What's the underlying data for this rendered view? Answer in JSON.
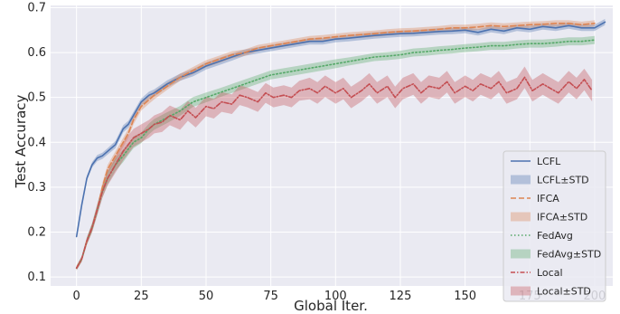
{
  "chart_data": {
    "type": "line",
    "title": "",
    "xlabel": "Global Iter.",
    "ylabel": "Test  Accuracy",
    "xlim": [
      -10,
      207
    ],
    "ylim": [
      0.08,
      0.705
    ],
    "xticks": [
      0,
      25,
      50,
      75,
      100,
      125,
      150,
      175,
      200
    ],
    "yticks": [
      0.1,
      0.2,
      0.3,
      0.4,
      0.5,
      0.6,
      0.7
    ],
    "grid": true,
    "legend_position": "bottom-right",
    "series": [
      {
        "name": "LCFL",
        "std_label": "LCFL±STD",
        "color": "#4C72B0",
        "dash": "solid",
        "x": [
          0,
          2,
          4,
          6,
          8,
          10,
          12,
          15,
          18,
          20,
          22,
          25,
          28,
          30,
          35,
          40,
          45,
          50,
          55,
          60,
          65,
          70,
          75,
          80,
          85,
          90,
          95,
          100,
          105,
          110,
          115,
          120,
          125,
          130,
          135,
          140,
          145,
          150,
          155,
          160,
          165,
          170,
          175,
          180,
          185,
          190,
          195,
          200,
          204
        ],
        "y": [
          0.19,
          0.26,
          0.32,
          0.35,
          0.365,
          0.37,
          0.38,
          0.395,
          0.43,
          0.44,
          0.46,
          0.49,
          0.505,
          0.51,
          0.53,
          0.545,
          0.555,
          0.57,
          0.58,
          0.59,
          0.6,
          0.605,
          0.61,
          0.615,
          0.62,
          0.625,
          0.625,
          0.63,
          0.632,
          0.635,
          0.638,
          0.64,
          0.642,
          0.643,
          0.645,
          0.647,
          0.648,
          0.65,
          0.645,
          0.652,
          0.648,
          0.655,
          0.652,
          0.658,
          0.655,
          0.66,
          0.655,
          0.655,
          0.668
        ],
        "std": [
          0.005,
          0.006,
          0.006,
          0.006,
          0.007,
          0.007,
          0.007,
          0.008,
          0.008,
          0.008,
          0.008,
          0.008,
          0.008,
          0.008,
          0.008,
          0.008,
          0.008,
          0.008,
          0.008,
          0.008,
          0.007,
          0.007,
          0.007,
          0.007,
          0.007,
          0.007,
          0.007,
          0.007,
          0.007,
          0.007,
          0.007,
          0.007,
          0.007,
          0.007,
          0.007,
          0.007,
          0.007,
          0.007,
          0.007,
          0.007,
          0.007,
          0.007,
          0.007,
          0.007,
          0.007,
          0.007,
          0.007,
          0.007,
          0.007
        ]
      },
      {
        "name": "IFCA",
        "std_label": "IFCA±STD",
        "color": "#DD8452",
        "dash": "6,3",
        "x": [
          0,
          2,
          4,
          6,
          8,
          10,
          12,
          15,
          18,
          20,
          22,
          25,
          28,
          30,
          35,
          40,
          45,
          50,
          55,
          60,
          65,
          70,
          75,
          80,
          85,
          90,
          95,
          100,
          105,
          110,
          115,
          120,
          125,
          130,
          135,
          140,
          145,
          150,
          155,
          160,
          165,
          170,
          175,
          180,
          185,
          190,
          195,
          200
        ],
        "y": [
          0.12,
          0.14,
          0.18,
          0.21,
          0.25,
          0.3,
          0.34,
          0.37,
          0.4,
          0.42,
          0.45,
          0.48,
          0.495,
          0.505,
          0.525,
          0.545,
          0.56,
          0.575,
          0.585,
          0.595,
          0.6,
          0.61,
          0.615,
          0.62,
          0.625,
          0.63,
          0.632,
          0.635,
          0.638,
          0.64,
          0.642,
          0.645,
          0.647,
          0.648,
          0.65,
          0.652,
          0.655,
          0.655,
          0.657,
          0.66,
          0.658,
          0.66,
          0.662,
          0.663,
          0.665,
          0.665,
          0.662,
          0.665
        ],
        "std": [
          0.005,
          0.006,
          0.007,
          0.008,
          0.009,
          0.01,
          0.01,
          0.01,
          0.01,
          0.01,
          0.01,
          0.009,
          0.009,
          0.009,
          0.008,
          0.008,
          0.008,
          0.008,
          0.008,
          0.008,
          0.007,
          0.007,
          0.007,
          0.007,
          0.007,
          0.007,
          0.007,
          0.007,
          0.007,
          0.007,
          0.007,
          0.007,
          0.007,
          0.007,
          0.007,
          0.007,
          0.007,
          0.007,
          0.007,
          0.007,
          0.007,
          0.007,
          0.007,
          0.007,
          0.007,
          0.007,
          0.007,
          0.007
        ]
      },
      {
        "name": "FedAvg",
        "std_label": "FedAvg±STD",
        "color": "#55A868",
        "dash": "1.5,2.5",
        "x": [
          0,
          2,
          4,
          6,
          8,
          10,
          12,
          15,
          18,
          20,
          22,
          25,
          28,
          30,
          35,
          40,
          45,
          50,
          55,
          60,
          65,
          70,
          75,
          80,
          85,
          90,
          95,
          100,
          105,
          110,
          115,
          120,
          125,
          130,
          135,
          140,
          145,
          150,
          155,
          160,
          165,
          170,
          175,
          180,
          185,
          190,
          195,
          200
        ],
        "y": [
          0.12,
          0.14,
          0.18,
          0.21,
          0.25,
          0.29,
          0.32,
          0.35,
          0.37,
          0.385,
          0.4,
          0.41,
          0.43,
          0.44,
          0.455,
          0.47,
          0.49,
          0.5,
          0.51,
          0.52,
          0.53,
          0.54,
          0.55,
          0.555,
          0.56,
          0.565,
          0.57,
          0.575,
          0.58,
          0.585,
          0.59,
          0.592,
          0.595,
          0.6,
          0.602,
          0.605,
          0.607,
          0.61,
          0.612,
          0.615,
          0.615,
          0.618,
          0.62,
          0.62,
          0.622,
          0.625,
          0.625,
          0.628
        ],
        "std": [
          0.005,
          0.006,
          0.008,
          0.01,
          0.012,
          0.013,
          0.014,
          0.014,
          0.014,
          0.013,
          0.013,
          0.012,
          0.012,
          0.012,
          0.012,
          0.011,
          0.011,
          0.011,
          0.01,
          0.01,
          0.01,
          0.01,
          0.01,
          0.01,
          0.01,
          0.01,
          0.01,
          0.01,
          0.009,
          0.009,
          0.009,
          0.009,
          0.009,
          0.009,
          0.009,
          0.009,
          0.009,
          0.009,
          0.009,
          0.009,
          0.009,
          0.009,
          0.009,
          0.009,
          0.009,
          0.009,
          0.009,
          0.009
        ]
      },
      {
        "name": "Local",
        "std_label": "Local±STD",
        "color": "#C44E52",
        "dash": "5,2,1.5,2",
        "x": [
          0,
          2,
          4,
          6,
          8,
          10,
          12,
          15,
          18,
          20,
          22,
          25,
          28,
          30,
          33,
          36,
          40,
          43,
          46,
          50,
          53,
          56,
          60,
          63,
          66,
          70,
          73,
          76,
          80,
          83,
          86,
          90,
          93,
          96,
          100,
          103,
          106,
          110,
          113,
          116,
          120,
          123,
          126,
          130,
          133,
          136,
          140,
          143,
          146,
          150,
          153,
          156,
          160,
          163,
          166,
          170,
          173,
          176,
          180,
          183,
          186,
          190,
          193,
          196,
          199
        ],
        "y": [
          0.12,
          0.14,
          0.18,
          0.21,
          0.25,
          0.29,
          0.32,
          0.35,
          0.38,
          0.395,
          0.41,
          0.42,
          0.43,
          0.44,
          0.445,
          0.46,
          0.45,
          0.47,
          0.455,
          0.48,
          0.475,
          0.49,
          0.485,
          0.505,
          0.5,
          0.49,
          0.51,
          0.5,
          0.505,
          0.5,
          0.515,
          0.52,
          0.51,
          0.525,
          0.51,
          0.52,
          0.5,
          0.515,
          0.53,
          0.51,
          0.525,
          0.5,
          0.52,
          0.53,
          0.51,
          0.525,
          0.52,
          0.535,
          0.51,
          0.525,
          0.515,
          0.53,
          0.52,
          0.535,
          0.51,
          0.52,
          0.545,
          0.515,
          0.53,
          0.52,
          0.51,
          0.535,
          0.52,
          0.54,
          0.515
        ],
        "std": [
          0.005,
          0.006,
          0.008,
          0.01,
          0.012,
          0.014,
          0.016,
          0.018,
          0.02,
          0.02,
          0.02,
          0.02,
          0.02,
          0.02,
          0.022,
          0.022,
          0.022,
          0.022,
          0.022,
          0.022,
          0.022,
          0.022,
          0.022,
          0.022,
          0.022,
          0.022,
          0.022,
          0.022,
          0.022,
          0.022,
          0.022,
          0.024,
          0.024,
          0.024,
          0.024,
          0.024,
          0.024,
          0.024,
          0.024,
          0.024,
          0.024,
          0.024,
          0.024,
          0.024,
          0.024,
          0.024,
          0.024,
          0.024,
          0.024,
          0.024,
          0.024,
          0.024,
          0.024,
          0.024,
          0.024,
          0.024,
          0.024,
          0.024,
          0.024,
          0.024,
          0.024,
          0.024,
          0.024,
          0.024,
          0.024
        ]
      }
    ]
  }
}
